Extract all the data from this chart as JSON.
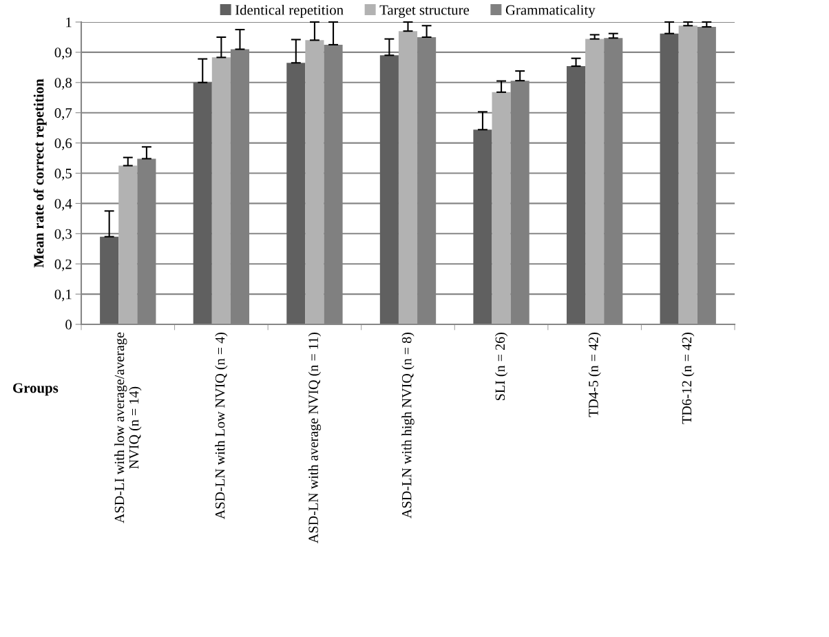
{
  "chart_data": {
    "type": "bar",
    "categories": [
      "ASD-LI with low average/average\nNVIQ (n = 14)",
      "ASD-LN with Low NVIQ (n = 4)",
      "ASD-LN with average NVIQ (n = 11)",
      "ASD-LN with high NVIQ (n = 8)",
      "SLI (n = 26)",
      "TD4-5 (n = 42)",
      "TD6-12 (n = 42)"
    ],
    "series": [
      {
        "name": "Identical repetition",
        "color": "#606060",
        "values": [
          0.29,
          0.8,
          0.865,
          0.89,
          0.644,
          0.854,
          0.962
        ],
        "errors": [
          [
            0.29,
            0.375
          ],
          [
            0.8,
            0.878
          ],
          [
            0.865,
            0.942
          ],
          [
            0.89,
            0.944
          ],
          [
            0.644,
            0.703
          ],
          [
            0.854,
            0.88
          ],
          [
            0.962,
            1.0
          ]
        ]
      },
      {
        "name": "Target structure",
        "color": "#b2b2b2",
        "values": [
          0.525,
          0.883,
          0.94,
          0.97,
          0.768,
          0.944,
          0.988
        ],
        "errors": [
          [
            0.525,
            0.552
          ],
          [
            0.883,
            0.95
          ],
          [
            0.94,
            1.0
          ],
          [
            0.97,
            1.0
          ],
          [
            0.768,
            0.805
          ],
          [
            0.944,
            0.958
          ],
          [
            0.988,
            1.0
          ]
        ]
      },
      {
        "name": "Grammaticality",
        "color": "#808080",
        "values": [
          0.548,
          0.91,
          0.925,
          0.95,
          0.806,
          0.947,
          0.984
        ],
        "errors": [
          [
            0.548,
            0.587
          ],
          [
            0.91,
            0.975
          ],
          [
            0.925,
            1.0
          ],
          [
            0.95,
            0.988
          ],
          [
            0.806,
            0.838
          ],
          [
            0.947,
            0.962
          ],
          [
            0.984,
            1.0
          ]
        ]
      }
    ],
    "xlabel": "Groups",
    "ylabel": "Mean rate of correct repetition",
    "ylim": [
      0,
      1
    ],
    "yticks": [
      0,
      {
        "value": 0.1,
        "label": "0,1"
      },
      {
        "value": 0.2,
        "label": "0,2"
      },
      {
        "value": 0.3,
        "label": "0,3"
      },
      {
        "value": 0.4,
        "label": "0,4"
      },
      {
        "value": 0.5,
        "label": "0,5"
      },
      {
        "value": 0.6,
        "label": "0,6"
      },
      {
        "value": 0.7,
        "label": "0,7"
      },
      {
        "value": 0.8,
        "label": "0,8"
      },
      {
        "value": 0.9,
        "label": "0,9"
      },
      1
    ],
    "grid": "y",
    "legend": "top"
  }
}
